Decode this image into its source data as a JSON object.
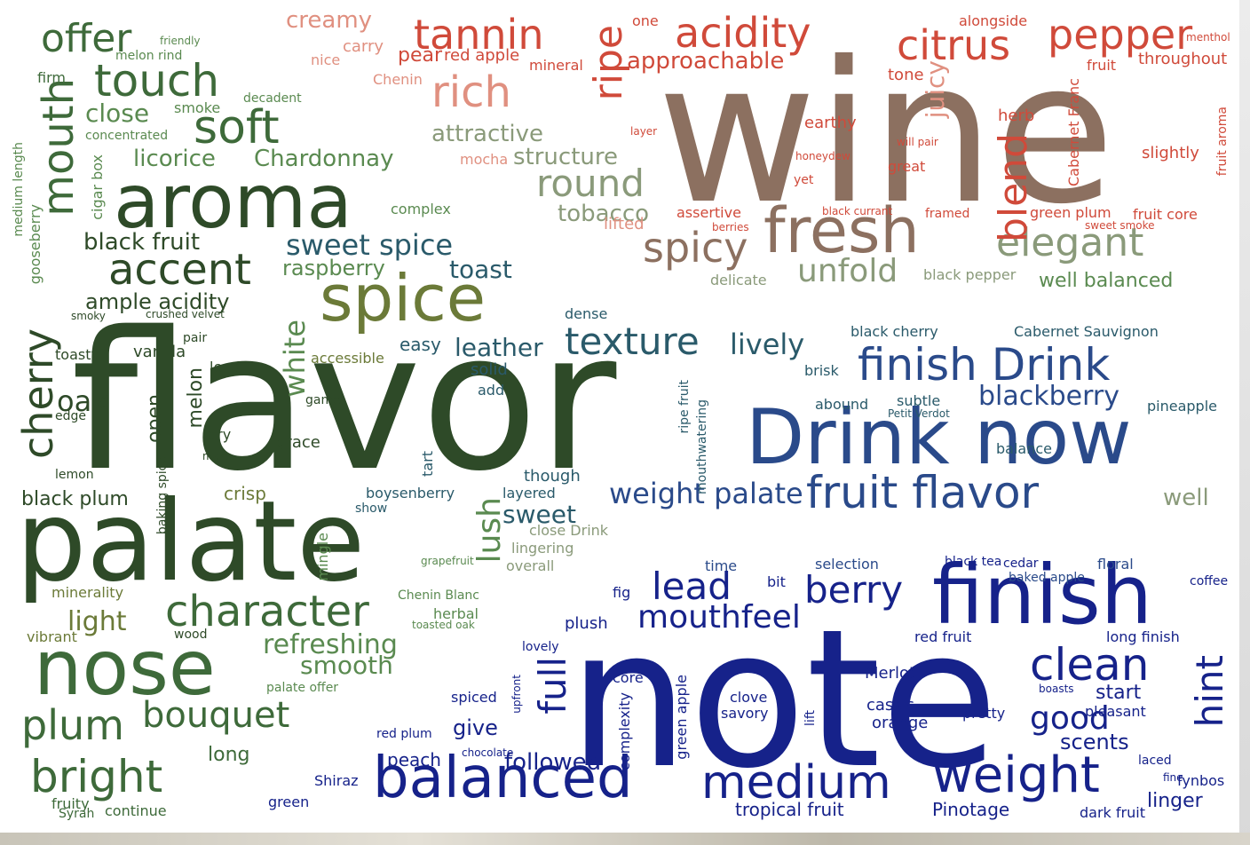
{
  "colors": {
    "green_dark": "#2e4a28",
    "green_mid": "#3e6a3a",
    "green_light": "#5a8a50",
    "olive": "#6b7a38",
    "brown": "#8c7060",
    "red": "#d04a3a",
    "salmon": "#e09080",
    "blue_dark": "#16228a",
    "blue_mid": "#2a4a8a",
    "teal": "#2a5a6a",
    "sage": "#8a9a7a"
  },
  "words": [
    {
      "text": "wine",
      "c": "brown"
    },
    {
      "text": "flavor",
      "c": "green_dark"
    },
    {
      "text": "note",
      "c": "blue_dark"
    },
    {
      "text": "palate",
      "c": "green_dark"
    },
    {
      "text": "aroma",
      "c": "green_dark"
    },
    {
      "text": "Drink now",
      "c": "blue_mid"
    },
    {
      "text": "finish",
      "c": "blue_dark"
    },
    {
      "text": "nose",
      "c": "green_mid"
    },
    {
      "text": "balanced",
      "c": "blue_dark"
    },
    {
      "text": "spice",
      "c": "olive"
    },
    {
      "text": "fresh",
      "c": "brown"
    },
    {
      "text": "acidity",
      "c": "red"
    },
    {
      "text": "tannin",
      "c": "red"
    },
    {
      "text": "citrus",
      "c": "red"
    },
    {
      "text": "pepper",
      "c": "red"
    },
    {
      "text": "rich",
      "c": "salmon"
    },
    {
      "text": "ripe",
      "c": "red"
    },
    {
      "text": "texture",
      "c": "teal"
    },
    {
      "text": "finish Drink",
      "c": "blue_mid"
    },
    {
      "text": "fruit flavor",
      "c": "blue_mid"
    },
    {
      "text": "medium",
      "c": "blue_dark"
    },
    {
      "text": "weight",
      "c": "blue_dark"
    },
    {
      "text": "clean",
      "c": "blue_dark"
    },
    {
      "text": "character",
      "c": "green_mid"
    },
    {
      "text": "plum",
      "c": "green_mid"
    },
    {
      "text": "bright",
      "c": "green_mid"
    },
    {
      "text": "bouquet",
      "c": "green_mid"
    },
    {
      "text": "accent",
      "c": "green_dark"
    },
    {
      "text": "soft",
      "c": "green_mid"
    },
    {
      "text": "touch",
      "c": "green_mid"
    },
    {
      "text": "offer",
      "c": "green_mid"
    },
    {
      "text": "mouth",
      "c": "green_mid"
    },
    {
      "text": "cherry",
      "c": "green_dark"
    },
    {
      "text": "elegant",
      "c": "sage"
    },
    {
      "text": "round",
      "c": "sage"
    },
    {
      "text": "spicy",
      "c": "brown"
    },
    {
      "text": "blend",
      "c": "red"
    },
    {
      "text": "unfold",
      "c": "sage"
    },
    {
      "text": "mouthfeel",
      "c": "blue_dark"
    },
    {
      "text": "lead",
      "c": "blue_dark"
    },
    {
      "text": "berry",
      "c": "blue_dark"
    },
    {
      "text": "full",
      "c": "blue_dark"
    },
    {
      "text": "hint",
      "c": "blue_dark"
    },
    {
      "text": "good",
      "c": "blue_dark"
    },
    {
      "text": "followed",
      "c": "blue_dark"
    },
    {
      "text": "weight palate",
      "c": "blue_mid"
    },
    {
      "text": "blackberry",
      "c": "blue_mid"
    },
    {
      "text": "lively",
      "c": "teal"
    },
    {
      "text": "leather",
      "c": "teal"
    },
    {
      "text": "refreshing",
      "c": "green_light"
    },
    {
      "text": "smooth",
      "c": "green_light"
    },
    {
      "text": "lush",
      "c": "green_light"
    },
    {
      "text": "sweet",
      "c": "teal"
    },
    {
      "text": "sweet spice",
      "c": "teal"
    },
    {
      "text": "toast",
      "c": "teal"
    },
    {
      "text": "white",
      "c": "green_light"
    },
    {
      "text": "raspberry",
      "c": "green_light"
    },
    {
      "text": "licorice",
      "c": "green_light"
    },
    {
      "text": "Chardonnay",
      "c": "green_light"
    },
    {
      "text": "black fruit",
      "c": "green_dark"
    },
    {
      "text": "ample acidity",
      "c": "green_dark"
    },
    {
      "text": "close",
      "c": "green_light"
    },
    {
      "text": "approachable",
      "c": "red"
    },
    {
      "text": "attractive",
      "c": "sage"
    },
    {
      "text": "structure",
      "c": "sage"
    },
    {
      "text": "tobacco",
      "c": "sage"
    },
    {
      "text": "juicy",
      "c": "salmon"
    },
    {
      "text": "herb",
      "c": "red"
    },
    {
      "text": "tone",
      "c": "red"
    },
    {
      "text": "earthy",
      "c": "red"
    },
    {
      "text": "Cabernet Franc",
      "c": "red"
    },
    {
      "text": "throughout",
      "c": "red"
    },
    {
      "text": "slightly",
      "c": "red"
    },
    {
      "text": "well balanced",
      "c": "green_light"
    },
    {
      "text": "black pepper",
      "c": "sage"
    },
    {
      "text": "green plum",
      "c": "red"
    },
    {
      "text": "fruit core",
      "c": "red"
    },
    {
      "text": "assertive",
      "c": "red"
    },
    {
      "text": "black currant",
      "c": "red"
    },
    {
      "text": "great",
      "c": "red"
    },
    {
      "text": "lifted",
      "c": "salmon"
    },
    {
      "text": "delicate",
      "c": "sage"
    },
    {
      "text": "pear",
      "c": "red"
    },
    {
      "text": "red apple",
      "c": "red"
    },
    {
      "text": "mineral",
      "c": "red"
    },
    {
      "text": "creamy",
      "c": "salmon"
    },
    {
      "text": "carry",
      "c": "salmon"
    },
    {
      "text": "nice",
      "c": "salmon"
    },
    {
      "text": "Chenin",
      "c": "salmon"
    },
    {
      "text": "alongside",
      "c": "red"
    },
    {
      "text": "mocha",
      "c": "salmon"
    },
    {
      "text": "complex",
      "c": "green_light"
    },
    {
      "text": "concentrated",
      "c": "green_light"
    },
    {
      "text": "smoke",
      "c": "green_light"
    },
    {
      "text": "firm",
      "c": "green_mid"
    },
    {
      "text": "decadent",
      "c": "green_light"
    },
    {
      "text": "melon rind",
      "c": "green_light"
    },
    {
      "text": "cigar box",
      "c": "green_light"
    },
    {
      "text": "gooseberry",
      "c": "green_light"
    },
    {
      "text": "medium length",
      "c": "green_light"
    },
    {
      "text": "vanilla",
      "c": "green_dark"
    },
    {
      "text": "toasty",
      "c": "green_dark"
    },
    {
      "text": "pair",
      "c": "green_dark"
    },
    {
      "text": "oak",
      "c": "green_dark"
    },
    {
      "text": "edge",
      "c": "green_dark"
    },
    {
      "text": "lemon",
      "c": "green_dark"
    },
    {
      "text": "black plum",
      "c": "green_dark"
    },
    {
      "text": "open",
      "c": "green_dark"
    },
    {
      "text": "melon",
      "c": "green_dark"
    },
    {
      "text": "dry",
      "c": "green_dark"
    },
    {
      "text": "lend",
      "c": "green_dark"
    },
    {
      "text": "game",
      "c": "green_dark"
    },
    {
      "text": "grace",
      "c": "green_dark"
    },
    {
      "text": "make",
      "c": "green_dark"
    },
    {
      "text": "baking spice",
      "c": "green_dark"
    },
    {
      "text": "crisp",
      "c": "olive"
    },
    {
      "text": "light",
      "c": "olive"
    },
    {
      "text": "minerality",
      "c": "olive"
    },
    {
      "text": "vibrant",
      "c": "olive"
    },
    {
      "text": "wood",
      "c": "green_dark"
    },
    {
      "text": "long",
      "c": "green_mid"
    },
    {
      "text": "continue",
      "c": "green_mid"
    },
    {
      "text": "fruity",
      "c": "green_mid"
    },
    {
      "text": "Syrah",
      "c": "green_mid"
    },
    {
      "text": "palate offer",
      "c": "green_light"
    },
    {
      "text": "accessible",
      "c": "olive"
    },
    {
      "text": "easy",
      "c": "teal"
    },
    {
      "text": "solid",
      "c": "teal"
    },
    {
      "text": "add",
      "c": "teal"
    },
    {
      "text": "dense",
      "c": "teal"
    },
    {
      "text": "tart",
      "c": "teal"
    },
    {
      "text": "though",
      "c": "teal"
    },
    {
      "text": "layered",
      "c": "teal"
    },
    {
      "text": "boysenberry",
      "c": "teal"
    },
    {
      "text": "show",
      "c": "teal"
    },
    {
      "text": "lingering",
      "c": "sage"
    },
    {
      "text": "overall",
      "c": "sage"
    },
    {
      "text": "close Drink",
      "c": "sage"
    },
    {
      "text": "herbal",
      "c": "green_light"
    },
    {
      "text": "mingle",
      "c": "green_light"
    },
    {
      "text": "Chenin Blanc",
      "c": "green_light"
    },
    {
      "text": "brisk",
      "c": "teal"
    },
    {
      "text": "abound",
      "c": "teal"
    },
    {
      "text": "subtle",
      "c": "teal"
    },
    {
      "text": "black cherry",
      "c": "teal"
    },
    {
      "text": "Cabernet Sauvignon",
      "c": "teal"
    },
    {
      "text": "pineapple",
      "c": "teal"
    },
    {
      "text": "balance",
      "c": "teal"
    },
    {
      "text": "well",
      "c": "sage"
    },
    {
      "text": "Petit Verdot",
      "c": "teal"
    },
    {
      "text": "ripe fruit",
      "c": "teal"
    },
    {
      "text": "mouthwatering",
      "c": "teal"
    },
    {
      "text": "selection",
      "c": "blue_mid"
    },
    {
      "text": "time",
      "c": "blue_mid"
    },
    {
      "text": "bit",
      "c": "blue_dark"
    },
    {
      "text": "floral",
      "c": "blue_mid"
    },
    {
      "text": "baked apple",
      "c": "blue_mid"
    },
    {
      "text": "plush",
      "c": "blue_dark"
    },
    {
      "text": "core",
      "c": "blue_dark"
    },
    {
      "text": "clove",
      "c": "blue_dark"
    },
    {
      "text": "savory",
      "c": "blue_dark"
    },
    {
      "text": "Merlot",
      "c": "blue_dark"
    },
    {
      "text": "cassis",
      "c": "blue_dark"
    },
    {
      "text": "orange",
      "c": "blue_dark"
    },
    {
      "text": "red fruit",
      "c": "blue_dark"
    },
    {
      "text": "long finish",
      "c": "blue_dark"
    },
    {
      "text": "start",
      "c": "blue_dark"
    },
    {
      "text": "pleasant",
      "c": "blue_dark"
    },
    {
      "text": "pretty",
      "c": "blue_dark"
    },
    {
      "text": "scents",
      "c": "blue_dark"
    },
    {
      "text": "laced",
      "c": "blue_dark"
    },
    {
      "text": "fynbos",
      "c": "blue_dark"
    },
    {
      "text": "linger",
      "c": "blue_dark"
    },
    {
      "text": "dark fruit",
      "c": "blue_dark"
    },
    {
      "text": "Pinotage",
      "c": "blue_dark"
    },
    {
      "text": "tropical fruit",
      "c": "blue_dark"
    },
    {
      "text": "give",
      "c": "blue_dark"
    },
    {
      "text": "spiced",
      "c": "blue_dark"
    },
    {
      "text": "peach",
      "c": "blue_dark"
    },
    {
      "text": "Shiraz",
      "c": "blue_dark"
    },
    {
      "text": "green",
      "c": "blue_dark"
    },
    {
      "text": "lift",
      "c": "blue_dark"
    },
    {
      "text": "complexity",
      "c": "blue_dark"
    },
    {
      "text": "green apple",
      "c": "blue_dark"
    },
    {
      "text": "fig",
      "c": "blue_dark"
    },
    {
      "text": "coffee",
      "c": "blue_dark"
    },
    {
      "text": "lovely",
      "c": "blue_dark"
    },
    {
      "text": "red plum",
      "c": "blue_dark"
    },
    {
      "text": "black tea",
      "c": "blue_dark"
    },
    {
      "text": "cedar",
      "c": "blue_dark"
    },
    {
      "text": "one",
      "c": "red"
    },
    {
      "text": "yet",
      "c": "red"
    },
    {
      "text": "fruit",
      "c": "red"
    },
    {
      "text": "menthol",
      "c": "red"
    },
    {
      "text": "fruit aroma",
      "c": "red"
    },
    {
      "text": "layer",
      "c": "red"
    },
    {
      "text": "will pair",
      "c": "red"
    },
    {
      "text": "honeydew",
      "c": "red"
    },
    {
      "text": "framed",
      "c": "red"
    },
    {
      "text": "berries",
      "c": "red"
    },
    {
      "text": "friendly",
      "c": "green_light"
    },
    {
      "text": "chocolate",
      "c": "blue_dark"
    },
    {
      "text": "upfront",
      "c": "blue_dark"
    },
    {
      "text": "boasts",
      "c": "blue_dark"
    },
    {
      "text": "fine",
      "c": "blue_dark"
    },
    {
      "text": "toasted oak",
      "c": "green_light"
    },
    {
      "text": "grapefruit",
      "c": "green_light"
    },
    {
      "text": "crushed velvet",
      "c": "green_dark"
    },
    {
      "text": "smoky",
      "c": "green_dark"
    },
    {
      "text": "sweet smoke",
      "c": "red"
    }
  ]
}
